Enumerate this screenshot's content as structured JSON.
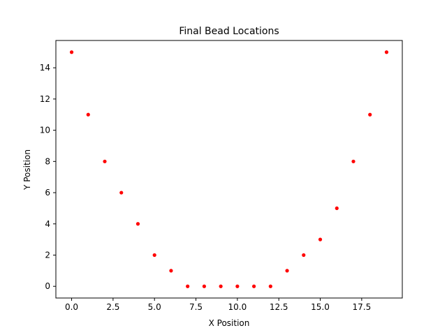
{
  "chart_data": {
    "type": "scatter",
    "title": "Final Bead Locations",
    "xlabel": "X Position",
    "ylabel": "Y Position",
    "xlim": [
      -0.95,
      19.95
    ],
    "ylim": [
      -0.75,
      15.75
    ],
    "xticks": [
      0.0,
      2.5,
      5.0,
      7.5,
      10.0,
      12.5,
      15.0,
      17.5
    ],
    "xtick_labels": [
      "0.0",
      "2.5",
      "5.0",
      "7.5",
      "10.0",
      "12.5",
      "15.0",
      "17.5"
    ],
    "yticks": [
      0,
      2,
      4,
      6,
      8,
      10,
      12,
      14
    ],
    "ytick_labels": [
      "0",
      "2",
      "4",
      "6",
      "8",
      "10",
      "12",
      "14"
    ],
    "grid": false,
    "marker_color": "#ff0000",
    "series": [
      {
        "x": [
          0,
          1,
          2,
          3,
          4,
          5,
          6,
          7,
          8,
          9,
          10,
          11,
          12,
          13,
          14,
          15,
          16,
          17,
          18,
          19
        ],
        "y": [
          15,
          11,
          8,
          6,
          4,
          2,
          1,
          0,
          0,
          0,
          0,
          0,
          0,
          1,
          2,
          3,
          5,
          8,
          11,
          15
        ]
      }
    ]
  }
}
